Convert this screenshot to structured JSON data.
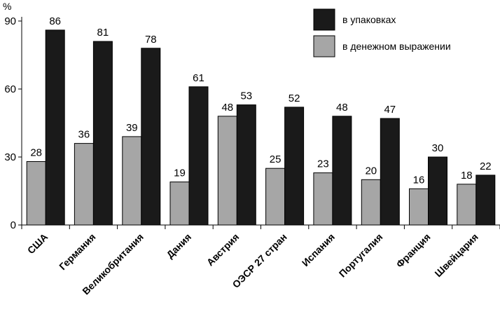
{
  "chart_data": {
    "type": "bar",
    "ylabel": "%",
    "ylim": [
      0,
      90
    ],
    "yticks": [
      0,
      30,
      60,
      90
    ],
    "grid": false,
    "legend_position": "top-right",
    "categories": [
      "США",
      "Германия",
      "Великобритания",
      "Дания",
      "Австрия",
      "ОЭСР 27 стран",
      "Испания",
      "Португалия",
      "Франция",
      "Швейцария"
    ],
    "series": [
      {
        "name": "в денежном выражении",
        "color": "#a6a6a6",
        "values": [
          28,
          36,
          39,
          19,
          48,
          25,
          23,
          20,
          16,
          18
        ]
      },
      {
        "name": "в упаковках",
        "color": "#1a1a1a",
        "values": [
          86,
          81,
          78,
          61,
          53,
          52,
          48,
          47,
          30,
          22
        ]
      }
    ]
  }
}
